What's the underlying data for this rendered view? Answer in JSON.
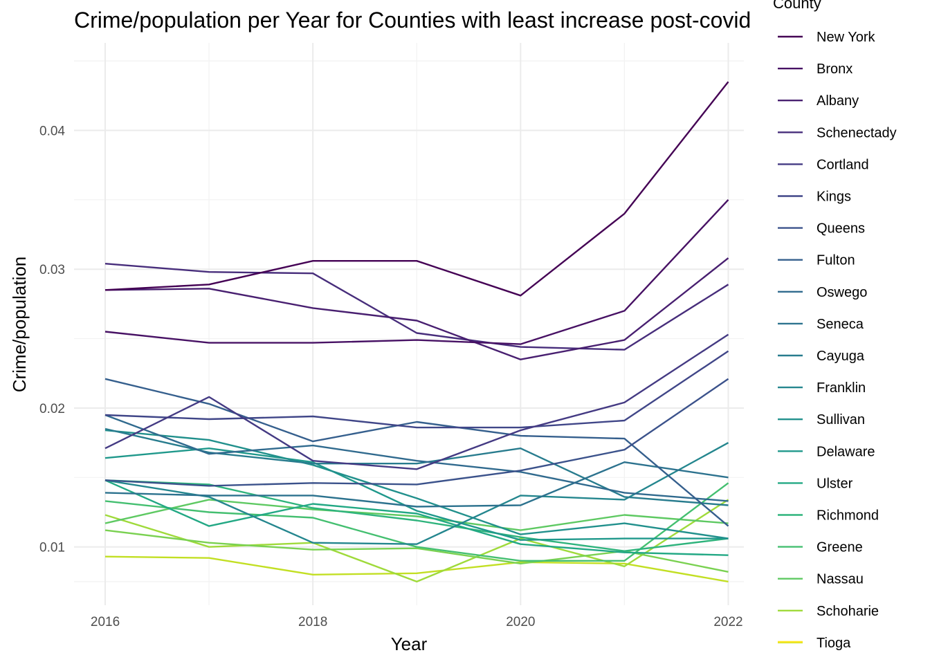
{
  "chart_data": {
    "type": "line",
    "title": "Crime/population per Year for Counties with least increase post-covid",
    "xlabel": "Year",
    "ylabel": "Crime/population",
    "x": [
      2016,
      2017,
      2018,
      2019,
      2020,
      2021,
      2022
    ],
    "xticks": [
      "2016",
      "2018",
      "2020",
      "2022"
    ],
    "yticks": [
      "0.01",
      "0.02",
      "0.03",
      "0.04"
    ],
    "xlim": [
      2015.7,
      2022.15
    ],
    "ylim": [
      0.0058,
      0.0463
    ],
    "grid": true,
    "legend_title": "County",
    "legend_position": "right",
    "series": [
      {
        "name": "New York",
        "color": "#440154",
        "values": [
          0.0285,
          0.0289,
          0.0306,
          0.0306,
          0.0281,
          0.034,
          0.0435
        ]
      },
      {
        "name": "Bronx",
        "color": "#471164",
        "values": [
          0.0255,
          0.0247,
          0.0247,
          0.0249,
          0.0246,
          0.027,
          0.035
        ]
      },
      {
        "name": "Albany",
        "color": "#481F70",
        "values": [
          0.0285,
          0.0286,
          0.0272,
          0.0263,
          0.0235,
          0.0249,
          0.0308
        ]
      },
      {
        "name": "Schenectady",
        "color": "#472D7B",
        "values": [
          0.0304,
          0.0298,
          0.0297,
          0.0254,
          0.0244,
          0.0242,
          0.0289
        ]
      },
      {
        "name": "Cortland",
        "color": "#443A83",
        "values": [
          0.0171,
          0.0208,
          0.0162,
          0.0156,
          0.0184,
          0.0204,
          0.0253
        ]
      },
      {
        "name": "Kings",
        "color": "#404688",
        "values": [
          0.0195,
          0.0192,
          0.0194,
          0.0186,
          0.0186,
          0.0191,
          0.0241
        ]
      },
      {
        "name": "Queens",
        "color": "#3B528B",
        "values": [
          0.0148,
          0.0144,
          0.0146,
          0.0145,
          0.0155,
          0.017,
          0.0221
        ]
      },
      {
        "name": "Fulton",
        "color": "#355F8D",
        "values": [
          0.0221,
          0.0203,
          0.0176,
          0.019,
          0.018,
          0.0178,
          0.0115
        ]
      },
      {
        "name": "Oswego",
        "color": "#306A8E",
        "values": [
          0.0195,
          0.0167,
          0.0173,
          0.0162,
          0.0154,
          0.0139,
          0.0133
        ]
      },
      {
        "name": "Seneca",
        "color": "#2C728E",
        "values": [
          0.0139,
          0.0137,
          0.0137,
          0.0129,
          0.013,
          0.0161,
          0.015
        ]
      },
      {
        "name": "Cayuga",
        "color": "#287C8E",
        "values": [
          0.0185,
          0.0168,
          0.016,
          0.016,
          0.0171,
          0.0136,
          0.013
        ]
      },
      {
        "name": "Franklin",
        "color": "#24868E",
        "values": [
          0.0148,
          0.0136,
          0.0103,
          0.0102,
          0.0137,
          0.0134,
          0.0175
        ]
      },
      {
        "name": "Sullivan",
        "color": "#21908C",
        "values": [
          0.0184,
          0.0177,
          0.0159,
          0.0135,
          0.0109,
          0.0117,
          0.0106
        ]
      },
      {
        "name": "Delaware",
        "color": "#1F988B",
        "values": [
          0.0164,
          0.0171,
          0.0161,
          0.0126,
          0.0105,
          0.0106,
          0.0106
        ]
      },
      {
        "name": "Ulster",
        "color": "#22A884",
        "values": [
          0.0148,
          0.0115,
          0.0131,
          0.0124,
          0.0102,
          0.0096,
          0.0094
        ]
      },
      {
        "name": "Richmond",
        "color": "#2EB37C",
        "values": [
          0.0148,
          0.0145,
          0.0128,
          0.0119,
          0.0107,
          0.0097,
          0.0106
        ]
      },
      {
        "name": "Greene",
        "color": "#44BF70",
        "values": [
          0.0133,
          0.0125,
          0.0121,
          0.01,
          0.009,
          0.009,
          0.0146
        ]
      },
      {
        "name": "Nassau",
        "color": "#5EC962",
        "values": [
          0.0117,
          0.0134,
          0.0127,
          0.0122,
          0.0112,
          0.0123,
          0.0117
        ]
      },
      {
        "name": "Schoharie",
        "color": "#7AD151",
        "values": [
          0.0112,
          0.0103,
          0.0098,
          0.0099,
          0.0088,
          0.0097,
          0.0082
        ]
      },
      {
        "name": "Tioga",
        "color": "#9FDA3A",
        "values": [
          0.0123,
          0.01,
          0.0103,
          0.0075,
          0.0106,
          0.0086,
          0.0134
        ]
      },
      {
        "name": "",
        "color": "#C2DF23",
        "values": [
          0.0093,
          0.0092,
          0.008,
          0.0081,
          0.0089,
          0.0088,
          0.0075
        ],
        "note": "unlabeled"
      }
    ],
    "legend_colors": [
      "#440154",
      "#471164",
      "#481F70",
      "#472D7B",
      "#443A83",
      "#404688",
      "#3B528B",
      "#355F8D",
      "#306A8E",
      "#2C728E",
      "#287C8E",
      "#24868E",
      "#21908C",
      "#1F988B",
      "#22A884",
      "#2EB37C",
      "#44BF70",
      "#5EC962",
      "#9FDA3A",
      "#C2DF23",
      "#FDE725"
    ]
  }
}
